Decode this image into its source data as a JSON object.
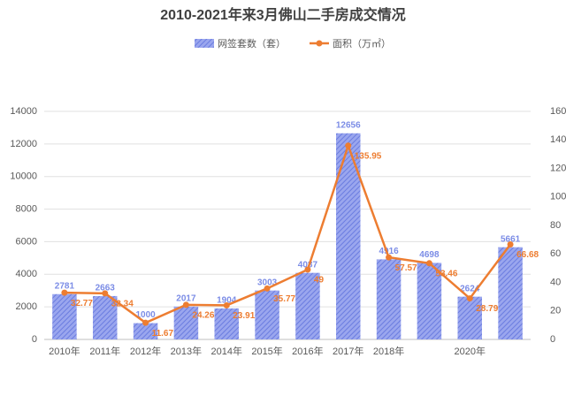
{
  "chart_data": {
    "type": "bar",
    "title": "2010-2021年来3月佛山二手房成交情况",
    "categories": [
      "2010年",
      "2011年",
      "2012年",
      "2013年",
      "2014年",
      "2015年",
      "2016年",
      "2017年",
      "2018年",
      null,
      "2020年",
      null
    ],
    "series": [
      {
        "name": "网签套数（套）",
        "type": "bar",
        "color": "#7b8ce6",
        "values": [
          2781,
          2663,
          1000,
          2017,
          1904,
          3003,
          4087,
          12656,
          4916,
          4698,
          2624,
          5661
        ]
      },
      {
        "name": "面积（万㎡）",
        "type": "line",
        "axis": "y2",
        "color": "#ed7d31",
        "values": [
          32.77,
          32.34,
          11.67,
          24.26,
          23.91,
          35.77,
          49,
          135.95,
          57.57,
          53.46,
          28.79,
          66.68
        ]
      }
    ],
    "ylim": [
      0,
      14000
    ],
    "yticks": [
      0,
      2000,
      4000,
      6000,
      8000,
      10000,
      12000,
      14000
    ],
    "y2lim": [
      0,
      160
    ],
    "y2ticks": [
      0,
      20,
      40,
      60,
      80,
      100,
      120,
      140,
      160
    ],
    "grid": true
  }
}
